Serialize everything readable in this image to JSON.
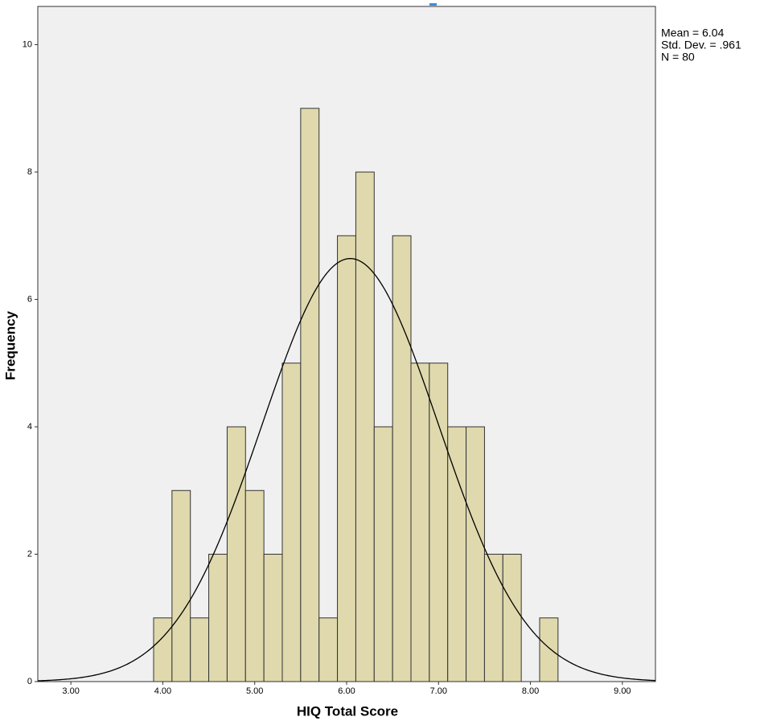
{
  "chart_data": {
    "type": "histogram",
    "x_label": "HIQ Total Score",
    "y_label": "Frequency",
    "bins": [
      3.9,
      4.1,
      4.3,
      4.5,
      4.7,
      4.9,
      5.1,
      5.3,
      5.5,
      5.7,
      5.9,
      6.1,
      6.3,
      6.5,
      6.7,
      6.9,
      7.1,
      7.3,
      7.5,
      7.7,
      7.9,
      8.1,
      8.3
    ],
    "values": [
      1,
      3,
      1,
      2,
      4,
      3,
      2,
      5,
      9,
      1,
      7,
      8,
      4,
      7,
      5,
      5,
      4,
      4,
      2,
      2,
      0,
      1
    ],
    "color": "#dfd9ad",
    "mean": {
      "value": 6.04,
      "label": "Mean = 6.04"
    },
    "std_dev": {
      "value": 0.961,
      "label": "Std. Dev. = .961"
    },
    "n": {
      "value": 80,
      "label": "N = 80"
    },
    "normal_curve": true,
    "xlim": [
      2.64,
      9.36
    ],
    "xticks": [
      {
        "value": 3,
        "label": "3.00"
      },
      {
        "value": 4,
        "label": "4.00"
      },
      {
        "value": 5,
        "label": "5.00"
      },
      {
        "value": 6,
        "label": "6.00"
      },
      {
        "value": 7,
        "label": "7.00"
      },
      {
        "value": 8,
        "label": "8.00"
      },
      {
        "value": 9,
        "label": "9.00"
      }
    ],
    "ylim": [
      0,
      10.6
    ],
    "yticks": [
      0,
      2,
      4,
      6,
      8,
      10
    ]
  }
}
